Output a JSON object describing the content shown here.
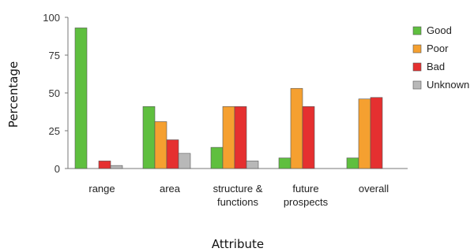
{
  "chart_data": {
    "type": "bar",
    "categories": [
      [
        "range"
      ],
      [
        "area"
      ],
      [
        "structure &",
        "functions"
      ],
      [
        "future",
        "prospects"
      ],
      [
        "overall"
      ]
    ],
    "series": [
      {
        "name": "Good",
        "color": "#5fbf3f",
        "values": [
          93,
          41,
          14,
          7,
          7
        ]
      },
      {
        "name": "Poor",
        "color": "#f5a030",
        "values": [
          0,
          31,
          41,
          53,
          46
        ]
      },
      {
        "name": "Bad",
        "color": "#e53030",
        "values": [
          5,
          19,
          41,
          41,
          47
        ]
      },
      {
        "name": "Unknown",
        "color": "#b8b8b8",
        "values": [
          2,
          10,
          5,
          0,
          0
        ]
      }
    ],
    "title": "",
    "xlabel": "Attribute",
    "ylabel": "Percentage",
    "ylim": [
      0,
      100
    ],
    "yticks": [
      0,
      25,
      50,
      75,
      100
    ],
    "grid": false,
    "legend_position": "right"
  }
}
